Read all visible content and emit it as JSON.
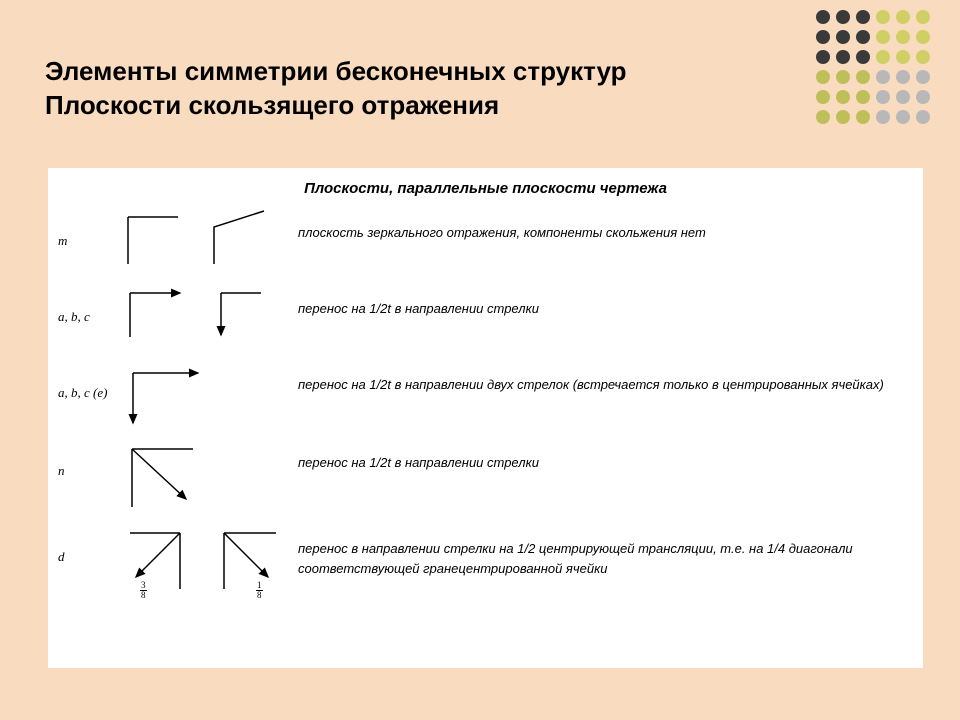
{
  "title_line1": "Элементы симметрии бесконечных структур",
  "title_line2": "Плоскости скользящего отражения",
  "subheader": "Плоскости, параллельные плоскости чертежа",
  "dots": {
    "rows": [
      [
        "#3a3a3a",
        "#3a3a3a",
        "#3a3a3a",
        "#cfcf66",
        "#cfcf66",
        "#cfcf66"
      ],
      [
        "#3a3a3a",
        "#3a3a3a",
        "#3a3a3a",
        "#cfcf66",
        "#cfcf66",
        "#cfcf66"
      ],
      [
        "#3a3a3a",
        "#3a3a3a",
        "#3a3a3a",
        "#cfcf66",
        "#cfcf66",
        "#cfcf66"
      ],
      [
        "#bfbf5a",
        "#bfbf5a",
        "#bfbf5a",
        "#b8b8b8",
        "#b8b8b8",
        "#b8b8b8"
      ],
      [
        "#bfbf5a",
        "#bfbf5a",
        "#bfbf5a",
        "#b8b8b8",
        "#b8b8b8",
        "#b8b8b8"
      ],
      [
        "#bfbf5a",
        "#bfbf5a",
        "#bfbf5a",
        "#b8b8b8",
        "#b8b8b8",
        "#b8b8b8"
      ]
    ]
  },
  "rows": [
    {
      "symbol": "m",
      "desc": "плоскость зеркального отражения, компоненты скольжения нет",
      "diagram_type": "m"
    },
    {
      "symbol": "a, b, c",
      "desc": "перенос на 1/2t в направлении стрелки",
      "diagram_type": "abc"
    },
    {
      "symbol": "a, b, c (e)",
      "desc": "перенос на 1/2t в направлении двух стрелок (встречается только в центрированных ячейках)",
      "diagram_type": "abce"
    },
    {
      "symbol": "n",
      "desc": "перенос на 1/2t в направлении стрелки",
      "diagram_type": "n"
    },
    {
      "symbol": "d",
      "desc": "перенос в направлении стрелки на 1/2 центрирующей трансляции, т.е. на 1/4 диагонали соответствующей гранецентрированной ячейки",
      "diagram_type": "d",
      "fractions": {
        "num": "3",
        "den": "8",
        "num2": "1",
        "den2": "8"
      }
    }
  ],
  "stroke_color": "#000000",
  "background": "#f9dcbf",
  "content_bg": "#ffffff"
}
